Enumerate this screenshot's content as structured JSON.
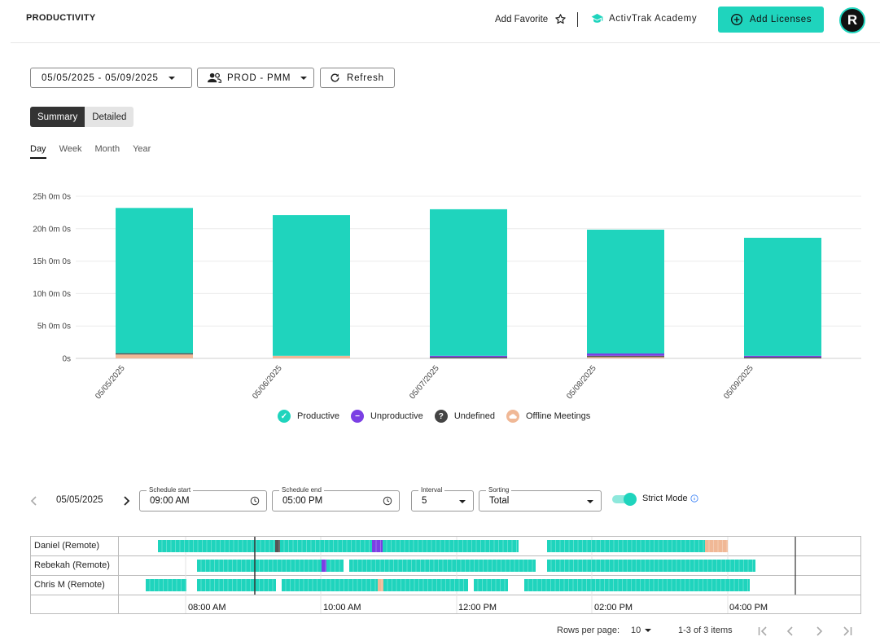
{
  "header": {
    "title": "PRODUCTIVITY",
    "add_favorite": "Add Favorite",
    "academy": "ActivTrak Academy",
    "add_licenses": "Add Licenses",
    "avatar_initial": "R"
  },
  "filters": {
    "date_range": "05/05/2025 - 05/09/2025",
    "group": "PROD - PMM",
    "refresh": "Refresh"
  },
  "view_toggle": {
    "summary": "Summary",
    "detailed": "Detailed",
    "selected": "Summary"
  },
  "period_tabs": [
    {
      "label": "Day",
      "active": true
    },
    {
      "label": "Week",
      "active": false
    },
    {
      "label": "Month",
      "active": false
    },
    {
      "label": "Year",
      "active": false
    }
  ],
  "colors": {
    "productive": "#1fd4bd",
    "unproductive": "#7b3fe4",
    "undefined": "#555555",
    "offline": "#f0b896",
    "accent": "#1fd4bd"
  },
  "chart_data": {
    "type": "bar",
    "stacked": true,
    "categories": [
      "05/05/2025",
      "05/06/2025",
      "05/07/2025",
      "05/08/2025",
      "05/09/2025"
    ],
    "y_ticks": [
      "25h 0m 0s",
      "20h 0m 0s",
      "15h 0m 0s",
      "10h 0m 0s",
      "5h 0m 0s",
      "0s"
    ],
    "ylim": [
      0,
      25
    ],
    "grid": true,
    "legend_position": "bottom",
    "series": [
      {
        "name": "Productive",
        "values": [
          22.4,
          21.7,
          22.6,
          19.1,
          18.2
        ]
      },
      {
        "name": "Unproductive",
        "values": [
          0.0,
          0.0,
          0.05,
          0.35,
          0.2
        ]
      },
      {
        "name": "Undefined",
        "values": [
          0.1,
          0.0,
          0.2,
          0.1,
          0.05
        ]
      },
      {
        "name": "Offline Meetings",
        "values": [
          0.6,
          0.4,
          0.0,
          0.2,
          0.0
        ]
      }
    ]
  },
  "timeline_controls": {
    "date": "05/05/2025",
    "schedule_start_label": "Schedule start",
    "schedule_start": "09:00 AM",
    "schedule_end_label": "Schedule end",
    "schedule_end": "05:00 PM",
    "interval_label": "Interval",
    "interval": "5",
    "sorting_label": "Sorting",
    "sorting": "Total",
    "strict_mode": "Strict Mode",
    "strict_on": true
  },
  "timeline": {
    "time_ticks": [
      "08:00 AM",
      "10:00 AM",
      "12:00 PM",
      "02:00 PM",
      "04:00 PM"
    ],
    "rows": [
      {
        "name": "Daniel (Remote)"
      },
      {
        "name": "Rebekah (Remote)"
      },
      {
        "name": "Chris M (Remote)"
      }
    ]
  },
  "pagination": {
    "rows_per_page_label": "Rows per page:",
    "rows_per_page": "10",
    "range": "1-3 of 3 items"
  }
}
